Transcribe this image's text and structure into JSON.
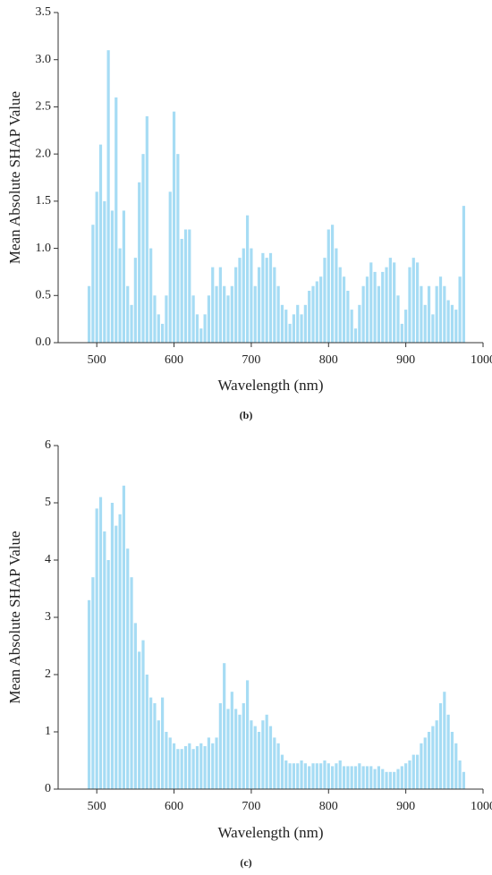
{
  "chart_data": [
    {
      "type": "bar",
      "caption": "(b)",
      "xlabel": "Wavelength (nm)",
      "ylabel": "Mean Absolute SHAP Value",
      "color": "#a6dcf4",
      "x": [
        490,
        495,
        500,
        505,
        510,
        515,
        520,
        525,
        530,
        535,
        540,
        545,
        550,
        555,
        560,
        565,
        570,
        575,
        580,
        585,
        590,
        595,
        600,
        605,
        610,
        615,
        620,
        625,
        630,
        635,
        640,
        645,
        650,
        655,
        660,
        665,
        670,
        675,
        680,
        685,
        690,
        695,
        700,
        705,
        710,
        715,
        720,
        725,
        730,
        735,
        740,
        745,
        750,
        755,
        760,
        765,
        770,
        775,
        780,
        785,
        790,
        795,
        800,
        805,
        810,
        815,
        820,
        825,
        830,
        835,
        840,
        845,
        850,
        855,
        860,
        865,
        870,
        875,
        880,
        885,
        890,
        895,
        900,
        905,
        910,
        915,
        920,
        925,
        930,
        935,
        940,
        945,
        950,
        955,
        960,
        965,
        970,
        975
      ],
      "values": [
        0.6,
        1.25,
        1.6,
        2.1,
        1.5,
        3.1,
        1.4,
        2.6,
        1.0,
        1.4,
        0.6,
        0.4,
        0.9,
        1.7,
        2.0,
        2.4,
        1.0,
        0.5,
        0.3,
        0.2,
        0.5,
        1.6,
        2.45,
        2.0,
        1.1,
        1.2,
        1.2,
        0.5,
        0.3,
        0.15,
        0.3,
        0.5,
        0.8,
        0.6,
        0.8,
        0.6,
        0.5,
        0.6,
        0.8,
        0.9,
        1.0,
        1.35,
        1.0,
        0.6,
        0.8,
        0.95,
        0.9,
        0.95,
        0.8,
        0.6,
        0.4,
        0.35,
        0.2,
        0.3,
        0.4,
        0.3,
        0.4,
        0.55,
        0.6,
        0.65,
        0.7,
        0.9,
        1.2,
        1.25,
        1.0,
        0.8,
        0.7,
        0.55,
        0.35,
        0.15,
        0.4,
        0.6,
        0.7,
        0.85,
        0.75,
        0.6,
        0.75,
        0.8,
        0.9,
        0.85,
        0.5,
        0.2,
        0.35,
        0.8,
        0.9,
        0.85,
        0.6,
        0.4,
        0.6,
        0.3,
        0.6,
        0.7,
        0.6,
        0.45,
        0.4,
        0.35,
        0.7,
        1.45
      ],
      "xlim": [
        450,
        1000
      ],
      "xticks": [
        500,
        600,
        700,
        800,
        900,
        1000
      ],
      "ylim": [
        0,
        3.5
      ],
      "yticks": [
        {
          "value": 0,
          "label": "0.0"
        },
        0.5,
        {
          "value": 1,
          "label": "1.0"
        },
        1.5,
        {
          "value": 2,
          "label": "2.0"
        },
        2.5,
        {
          "value": 3,
          "label": "3.0"
        },
        3.5
      ]
    },
    {
      "type": "bar",
      "caption": "(c)",
      "xlabel": "Wavelength (nm)",
      "ylabel": "Mean Absolute SHAP Value",
      "color": "#a6dcf4",
      "x": [
        490,
        495,
        500,
        505,
        510,
        515,
        520,
        525,
        530,
        535,
        540,
        545,
        550,
        555,
        560,
        565,
        570,
        575,
        580,
        585,
        590,
        595,
        600,
        605,
        610,
        615,
        620,
        625,
        630,
        635,
        640,
        645,
        650,
        655,
        660,
        665,
        670,
        675,
        680,
        685,
        690,
        695,
        700,
        705,
        710,
        715,
        720,
        725,
        730,
        735,
        740,
        745,
        750,
        755,
        760,
        765,
        770,
        775,
        780,
        785,
        790,
        795,
        800,
        805,
        810,
        815,
        820,
        825,
        830,
        835,
        840,
        845,
        850,
        855,
        860,
        865,
        870,
        875,
        880,
        885,
        890,
        895,
        900,
        905,
        910,
        915,
        920,
        925,
        930,
        935,
        940,
        945,
        950,
        955,
        960,
        965,
        970,
        975
      ],
      "values": [
        3.3,
        3.7,
        4.9,
        5.1,
        4.5,
        4.0,
        5.0,
        4.6,
        4.8,
        5.3,
        4.2,
        3.7,
        2.9,
        2.4,
        2.6,
        2.0,
        1.6,
        1.5,
        1.2,
        1.6,
        1.0,
        0.9,
        0.8,
        0.7,
        0.7,
        0.75,
        0.8,
        0.7,
        0.75,
        0.8,
        0.75,
        0.9,
        0.8,
        0.9,
        1.5,
        2.2,
        1.4,
        1.7,
        1.4,
        1.3,
        1.5,
        1.9,
        1.2,
        1.1,
        1.0,
        1.2,
        1.3,
        1.1,
        0.9,
        0.8,
        0.6,
        0.5,
        0.45,
        0.45,
        0.45,
        0.5,
        0.45,
        0.4,
        0.45,
        0.45,
        0.45,
        0.5,
        0.45,
        0.4,
        0.45,
        0.5,
        0.4,
        0.4,
        0.4,
        0.4,
        0.45,
        0.4,
        0.4,
        0.4,
        0.35,
        0.4,
        0.35,
        0.3,
        0.3,
        0.3,
        0.35,
        0.4,
        0.45,
        0.5,
        0.6,
        0.6,
        0.8,
        0.9,
        1.0,
        1.1,
        1.2,
        1.5,
        1.7,
        1.3,
        1.0,
        0.8,
        0.5,
        0.3
      ],
      "xlim": [
        450,
        1000
      ],
      "xticks": [
        500,
        600,
        700,
        800,
        900,
        1000
      ],
      "ylim": [
        0,
        6
      ],
      "yticks": [
        0,
        1,
        2,
        3,
        4,
        5,
        6
      ]
    }
  ]
}
